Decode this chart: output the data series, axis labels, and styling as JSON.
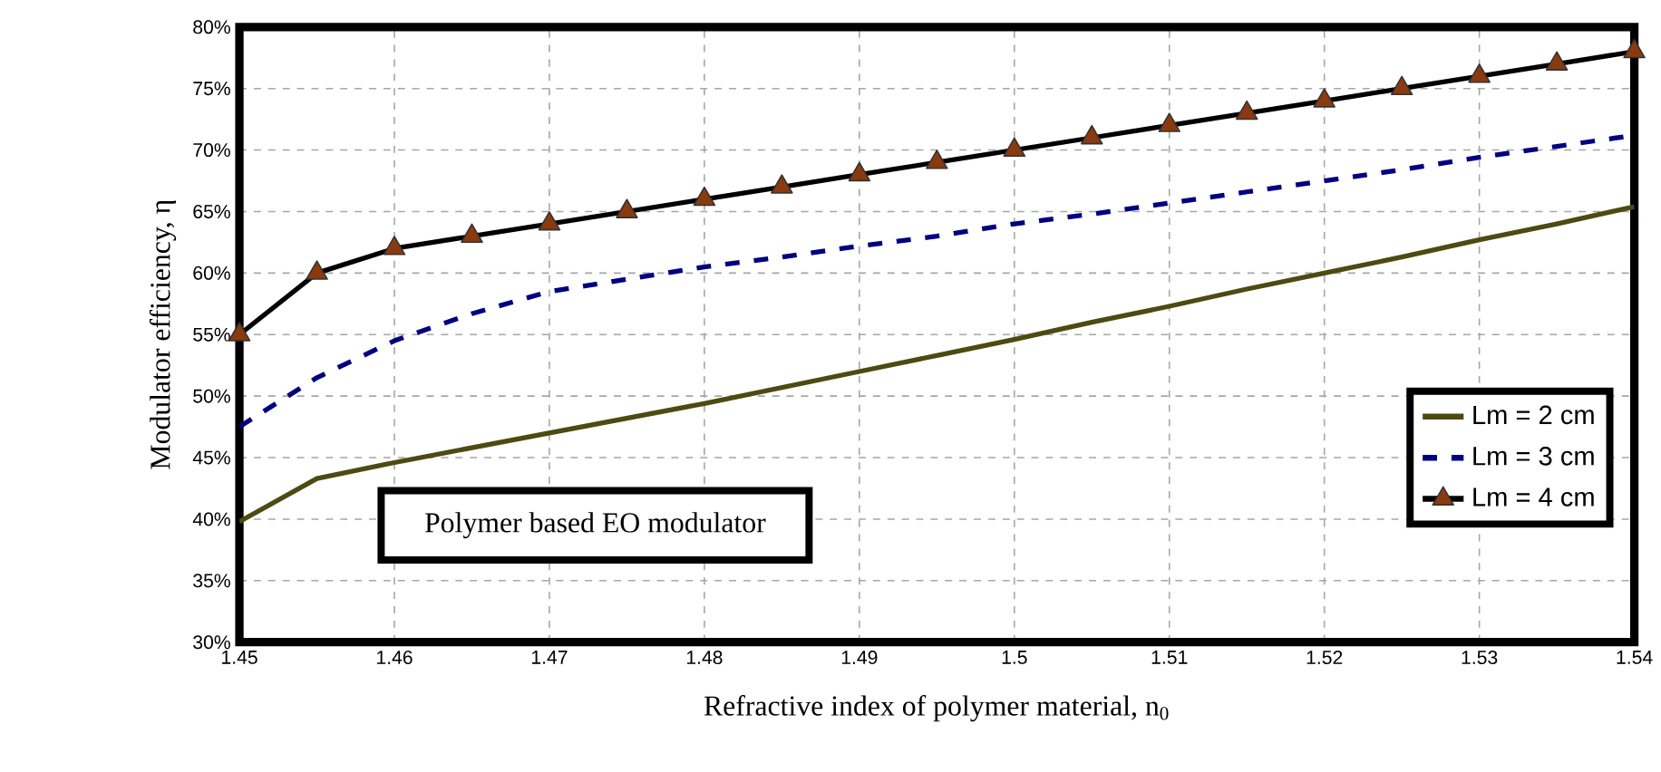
{
  "chart_data": {
    "type": "line",
    "xlabel": "Refractive index of polymer material, n$_{0}$",
    "ylabel": "Modulator efficiency, η",
    "xlim": [
      1.45,
      1.54
    ],
    "xticks": [
      1.45,
      1.46,
      1.47,
      1.48,
      1.49,
      1.5,
      1.51,
      1.52,
      1.53,
      1.54
    ],
    "ylim": [
      30,
      80
    ],
    "yticks": [
      {
        "value": 30,
        "label": "30%"
      },
      {
        "value": 35,
        "label": "35%"
      },
      {
        "value": 40,
        "label": "40%"
      },
      {
        "value": 45,
        "label": "45%"
      },
      {
        "value": 50,
        "label": "50%"
      },
      {
        "value": 55,
        "label": "55%"
      },
      {
        "value": 60,
        "label": "60%"
      },
      {
        "value": 65,
        "label": "65%"
      },
      {
        "value": 70,
        "label": "70%"
      },
      {
        "value": 75,
        "label": "75%"
      },
      {
        "value": 80,
        "label": "80%"
      }
    ],
    "grid": true,
    "legend": "right",
    "annotations": [
      "Polymer based EO modulator"
    ],
    "series": [
      {
        "name": "Lm = 2 cm",
        "color": "#4d4a12",
        "line_style": "solid",
        "marker": "none",
        "x": [
          1.45,
          1.455,
          1.46,
          1.465,
          1.47,
          1.475,
          1.48,
          1.485,
          1.49,
          1.495,
          1.5,
          1.505,
          1.51,
          1.515,
          1.52,
          1.525,
          1.53,
          1.535,
          1.54
        ],
        "values": [
          39.8,
          43.3,
          44.6,
          45.8,
          47,
          48.2,
          49.4,
          50.7,
          52,
          53.3,
          54.6,
          56,
          57.3,
          58.7,
          60,
          61.3,
          62.7,
          64,
          65.4
        ]
      },
      {
        "name": "Lm = 3 cm",
        "color": "#000080",
        "line_style": "dashed",
        "marker": "none",
        "x": [
          1.45,
          1.455,
          1.46,
          1.465,
          1.47,
          1.475,
          1.48,
          1.485,
          1.49,
          1.495,
          1.5,
          1.505,
          1.51,
          1.515,
          1.52,
          1.525,
          1.53,
          1.535,
          1.54
        ],
        "values": [
          47.5,
          51.5,
          54.5,
          56.7,
          58.5,
          59.5,
          60.5,
          61.3,
          62.2,
          63,
          64,
          64.8,
          65.7,
          66.6,
          67.5,
          68.4,
          69.4,
          70.3,
          71.2
        ]
      },
      {
        "name": "Lm = 4 cm",
        "color": "#000000",
        "line_style": "solid",
        "marker": "triangle",
        "x": [
          1.45,
          1.455,
          1.46,
          1.465,
          1.47,
          1.475,
          1.48,
          1.485,
          1.49,
          1.495,
          1.5,
          1.505,
          1.51,
          1.515,
          1.52,
          1.525,
          1.53,
          1.535,
          1.54
        ],
        "values": [
          55,
          60,
          62,
          63,
          64,
          65,
          66,
          67,
          68,
          69,
          70,
          71,
          72,
          73,
          74,
          75,
          76,
          77,
          78
        ]
      }
    ]
  }
}
